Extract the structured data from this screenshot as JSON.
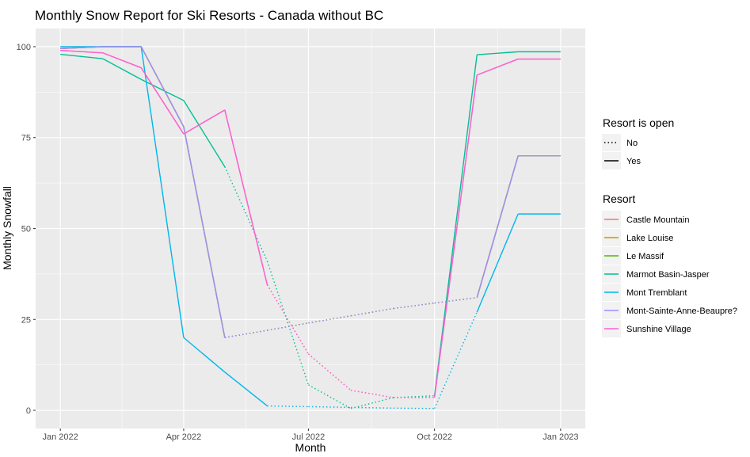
{
  "chart_data": {
    "type": "line",
    "title": "Monthly Snow Report for Ski Resorts - Canada without BC",
    "xlabel": "Month",
    "ylabel": "Monthly Snowfall",
    "x": [
      "2022-01-01",
      "2022-02-01",
      "2022-03-01",
      "2022-04-01",
      "2022-05-01",
      "2022-06-01",
      "2022-07-01",
      "2022-08-01",
      "2022-09-01",
      "2022-10-01",
      "2022-11-01",
      "2022-12-01",
      "2023-01-01"
    ],
    "xlim": [
      "2021-12-14",
      "2023-01-19"
    ],
    "ylim": [
      -5,
      105
    ],
    "x_ticks": [
      {
        "date": "2022-01-01",
        "label": "Jan 2022"
      },
      {
        "date": "2022-04-01",
        "label": "Apr 2022"
      },
      {
        "date": "2022-07-01",
        "label": "Jul 2022"
      },
      {
        "date": "2022-10-01",
        "label": "Oct 2022"
      },
      {
        "date": "2023-01-01",
        "label": "Jan 2023"
      }
    ],
    "y_ticks": [
      {
        "value": 0,
        "label": "0"
      },
      {
        "value": 25,
        "label": "25"
      },
      {
        "value": 50,
        "label": "50"
      },
      {
        "value": 75,
        "label": "75"
      },
      {
        "value": 100,
        "label": "100"
      }
    ],
    "grid": true,
    "legend_position": "right",
    "linetype_legend": {
      "title": "Resort is open",
      "entries": [
        {
          "label": "No",
          "dash": "dotted"
        },
        {
          "label": "Yes",
          "dash": "solid"
        }
      ]
    },
    "series": [
      {
        "name": "Castle Mountain",
        "color": "#F8766D",
        "values": [
          99,
          98.3,
          94.2,
          76,
          82.6,
          34.5,
          15.5,
          5.5,
          3.5,
          3.5,
          92.2,
          96.6,
          96.6
        ],
        "open": [
          true,
          true,
          true,
          true,
          true,
          true,
          false,
          false,
          false,
          false,
          true,
          true,
          true
        ]
      },
      {
        "name": "Lake Louise",
        "color": "#C49A00",
        "values": [
          99.5,
          100,
          100,
          78,
          20,
          22,
          24,
          26,
          28,
          29.5,
          31,
          70,
          70
        ],
        "open": [
          true,
          true,
          true,
          true,
          true,
          false,
          false,
          false,
          false,
          false,
          false,
          true,
          true
        ]
      },
      {
        "name": "Le Massif",
        "color": "#53B400",
        "values": [
          99.5,
          100,
          100,
          78,
          20,
          22,
          24,
          26,
          28,
          29.5,
          31,
          70,
          70
        ],
        "open": [
          true,
          true,
          true,
          true,
          true,
          false,
          false,
          false,
          false,
          false,
          false,
          true,
          true
        ]
      },
      {
        "name": "Marmot Basin-Jasper",
        "color": "#00C094",
        "values": [
          97.9,
          96.7,
          91,
          85.2,
          67,
          41,
          7,
          0.5,
          3.5,
          4,
          97.8,
          98.6,
          98.6
        ],
        "open": [
          true,
          true,
          true,
          true,
          true,
          false,
          false,
          false,
          false,
          false,
          true,
          true,
          true
        ]
      },
      {
        "name": "Mont Tremblant",
        "color": "#00B6EB",
        "values": [
          100,
          100,
          100,
          20,
          10.5,
          1.2,
          1,
          0.8,
          0.6,
          0.5,
          27,
          54,
          54
        ],
        "open": [
          true,
          true,
          true,
          true,
          true,
          true,
          false,
          false,
          false,
          false,
          false,
          true,
          true
        ]
      },
      {
        "name": "Mont-Sainte-Anne-Beaupre?",
        "color": "#A58AFF",
        "values": [
          99.5,
          100,
          100,
          78,
          20,
          22,
          24,
          26,
          28,
          29.5,
          31,
          70,
          70
        ],
        "open": [
          true,
          true,
          true,
          true,
          true,
          false,
          false,
          false,
          false,
          false,
          false,
          true,
          true
        ]
      },
      {
        "name": "Sunshine Village",
        "color": "#FB61D7",
        "values": [
          99,
          98.3,
          94.2,
          76,
          82.6,
          34.5,
          15.5,
          5.5,
          3.5,
          3.5,
          92.2,
          96.6,
          96.6
        ],
        "open": [
          true,
          true,
          true,
          true,
          true,
          true,
          false,
          false,
          false,
          false,
          true,
          true,
          true
        ]
      }
    ]
  }
}
